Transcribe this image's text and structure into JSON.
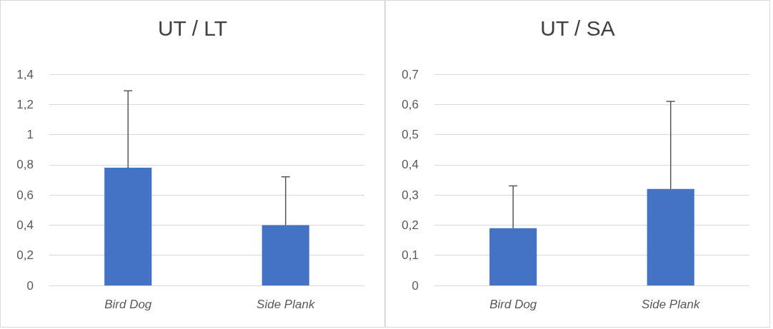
{
  "chart_data": [
    {
      "type": "bar",
      "title": "UT / LT",
      "categories": [
        "Bird Dog",
        "Side Plank"
      ],
      "values": [
        0.78,
        0.4
      ],
      "color": "#4472c4",
      "errors": [
        [
          0.78,
          1.29
        ],
        [
          0.4,
          0.72
        ]
      ],
      "ylim": [
        0,
        1.4
      ],
      "yticks": [
        {
          "value": 0,
          "label": "0"
        },
        {
          "value": 0.2,
          "label": "0,2"
        },
        {
          "value": 0.4,
          "label": "0,4"
        },
        {
          "value": 0.6,
          "label": "0,6"
        },
        {
          "value": 0.8,
          "label": "0,8"
        },
        {
          "value": 1,
          "label": "1"
        },
        {
          "value": 1.2,
          "label": "1,2"
        },
        {
          "value": 1.4,
          "label": "1,4"
        }
      ],
      "grid": "y"
    },
    {
      "type": "bar",
      "title": "UT / SA",
      "categories": [
        "Bird Dog",
        "Side Plank"
      ],
      "values": [
        0.19,
        0.32
      ],
      "color": "#4472c4",
      "errors": [
        [
          0.19,
          0.33
        ],
        [
          0.32,
          0.61
        ]
      ],
      "ylim": [
        0,
        0.7
      ],
      "yticks": [
        {
          "value": 0,
          "label": "0"
        },
        {
          "value": 0.1,
          "label": "0,1"
        },
        {
          "value": 0.2,
          "label": "0,2"
        },
        {
          "value": 0.3,
          "label": "0,3"
        },
        {
          "value": 0.4,
          "label": "0,4"
        },
        {
          "value": 0.5,
          "label": "0,5"
        },
        {
          "value": 0.6,
          "label": "0,6"
        },
        {
          "value": 0.7,
          "label": "0,7"
        }
      ],
      "grid": "y"
    }
  ]
}
